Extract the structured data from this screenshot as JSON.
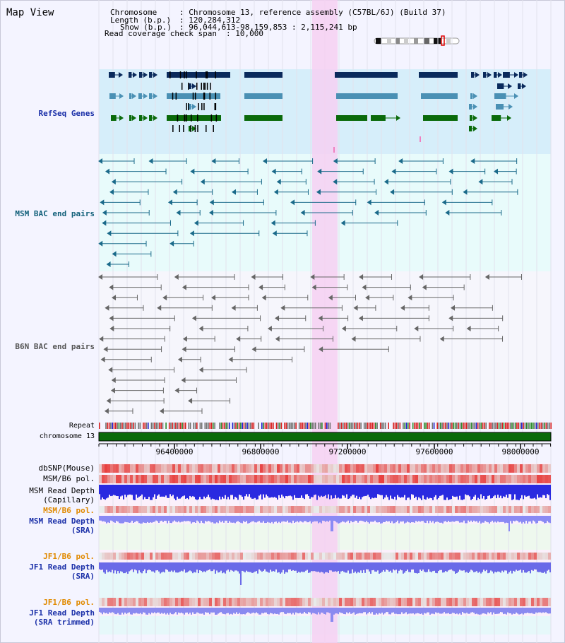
{
  "title": "Map View",
  "info": {
    "chromosome_key": "Chromosome",
    "chromosome_val": ": Chromosome 13, reference assembly (C57BL/6J) (Build 37)",
    "length_key": "Length (b.p.)",
    "length_val": ": 120,284,312",
    "show_key": "Show (b.p.)",
    "show_val": ": 96,044,613-98,159,853 : 2,115,241 bp",
    "coverage_key": "Read coverage check span",
    "coverage_val": ": 10,000"
  },
  "tracks": {
    "refseq": "RefSeq Genes",
    "msm_bac": "MSM BAC end pairs",
    "b6n_bac": "B6N BAC end pairs",
    "repeat": "Repeat",
    "chromosome": "chromosome 13",
    "dbsnp": "dbSNP(Mouse)",
    "msm_b6_pol_1": "MSM/B6 pol.",
    "msm_read_depth_cap_1": "MSM Read Depth",
    "msm_read_depth_cap_2": "(Capillary)",
    "msm_b6_pol_2": "MSM/B6 pol.",
    "msm_read_depth_sra_1": "MSM Read Depth",
    "msm_read_depth_sra_2": "(SRA)",
    "jf1_b6_pol_1": "JF1/B6 pol.",
    "jf1_read_depth_sra_1": "JF1 Read Depth",
    "jf1_read_depth_sra_2": "(SRA)",
    "jf1_b6_pol_2": "JF1/B6 pol.",
    "jf1_read_depth_trim_1": "JF1 Read Depth",
    "jf1_read_depth_trim_2": "(SRA trimmed)"
  },
  "axis": {
    "ticks": [
      "96400000",
      "96800000",
      "97200000",
      "97600000",
      "98000000"
    ]
  },
  "colors": {
    "refseq_bg": "#d6eefa",
    "msm_bg": "#e8fbfb",
    "highlight": "#f6d0f2",
    "gene_dark": "#0a2a5c",
    "gene_mid": "#4a90b4",
    "gene_green": "#0a6a0a",
    "msm_line": "#1a6a8a",
    "b6n_line": "#666666",
    "snp_red": "#e84040",
    "depth_blue": "#2020e0",
    "depth_light": "#7878f0",
    "chrom_green": "#0a6a0a"
  }
}
